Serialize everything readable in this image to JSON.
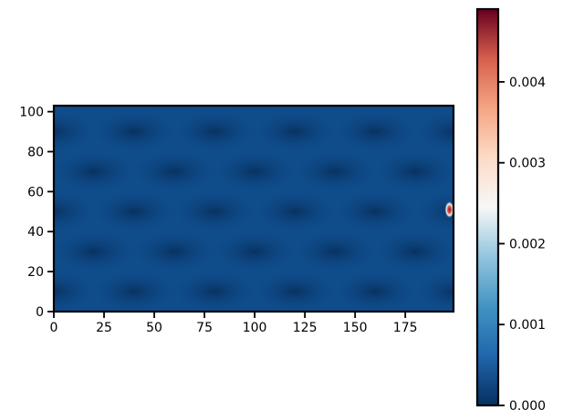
{
  "chart_data": {
    "type": "heatmap",
    "title": "",
    "xlabel": "",
    "ylabel": "",
    "xlim": [
      0,
      199
    ],
    "ylim": [
      0,
      103
    ],
    "x_ticks": [
      0,
      25,
      50,
      75,
      100,
      125,
      150,
      175
    ],
    "y_ticks": [
      0,
      20,
      40,
      60,
      80,
      100
    ],
    "colormap": "RdBu_r",
    "colorbar": {
      "range": [
        0.0,
        0.0049
      ],
      "ticks": [
        0.0,
        0.001,
        0.002,
        0.003,
        0.004
      ],
      "tick_labels": [
        "0.000",
        "0.001",
        "0.002",
        "0.003",
        "0.004"
      ]
    },
    "field": {
      "background_value": 0.0002,
      "pattern": "periodic cell pattern",
      "x_period": 40,
      "y_period": 20,
      "peak": {
        "x": 197,
        "y": 51,
        "value": 0.0049
      }
    }
  }
}
